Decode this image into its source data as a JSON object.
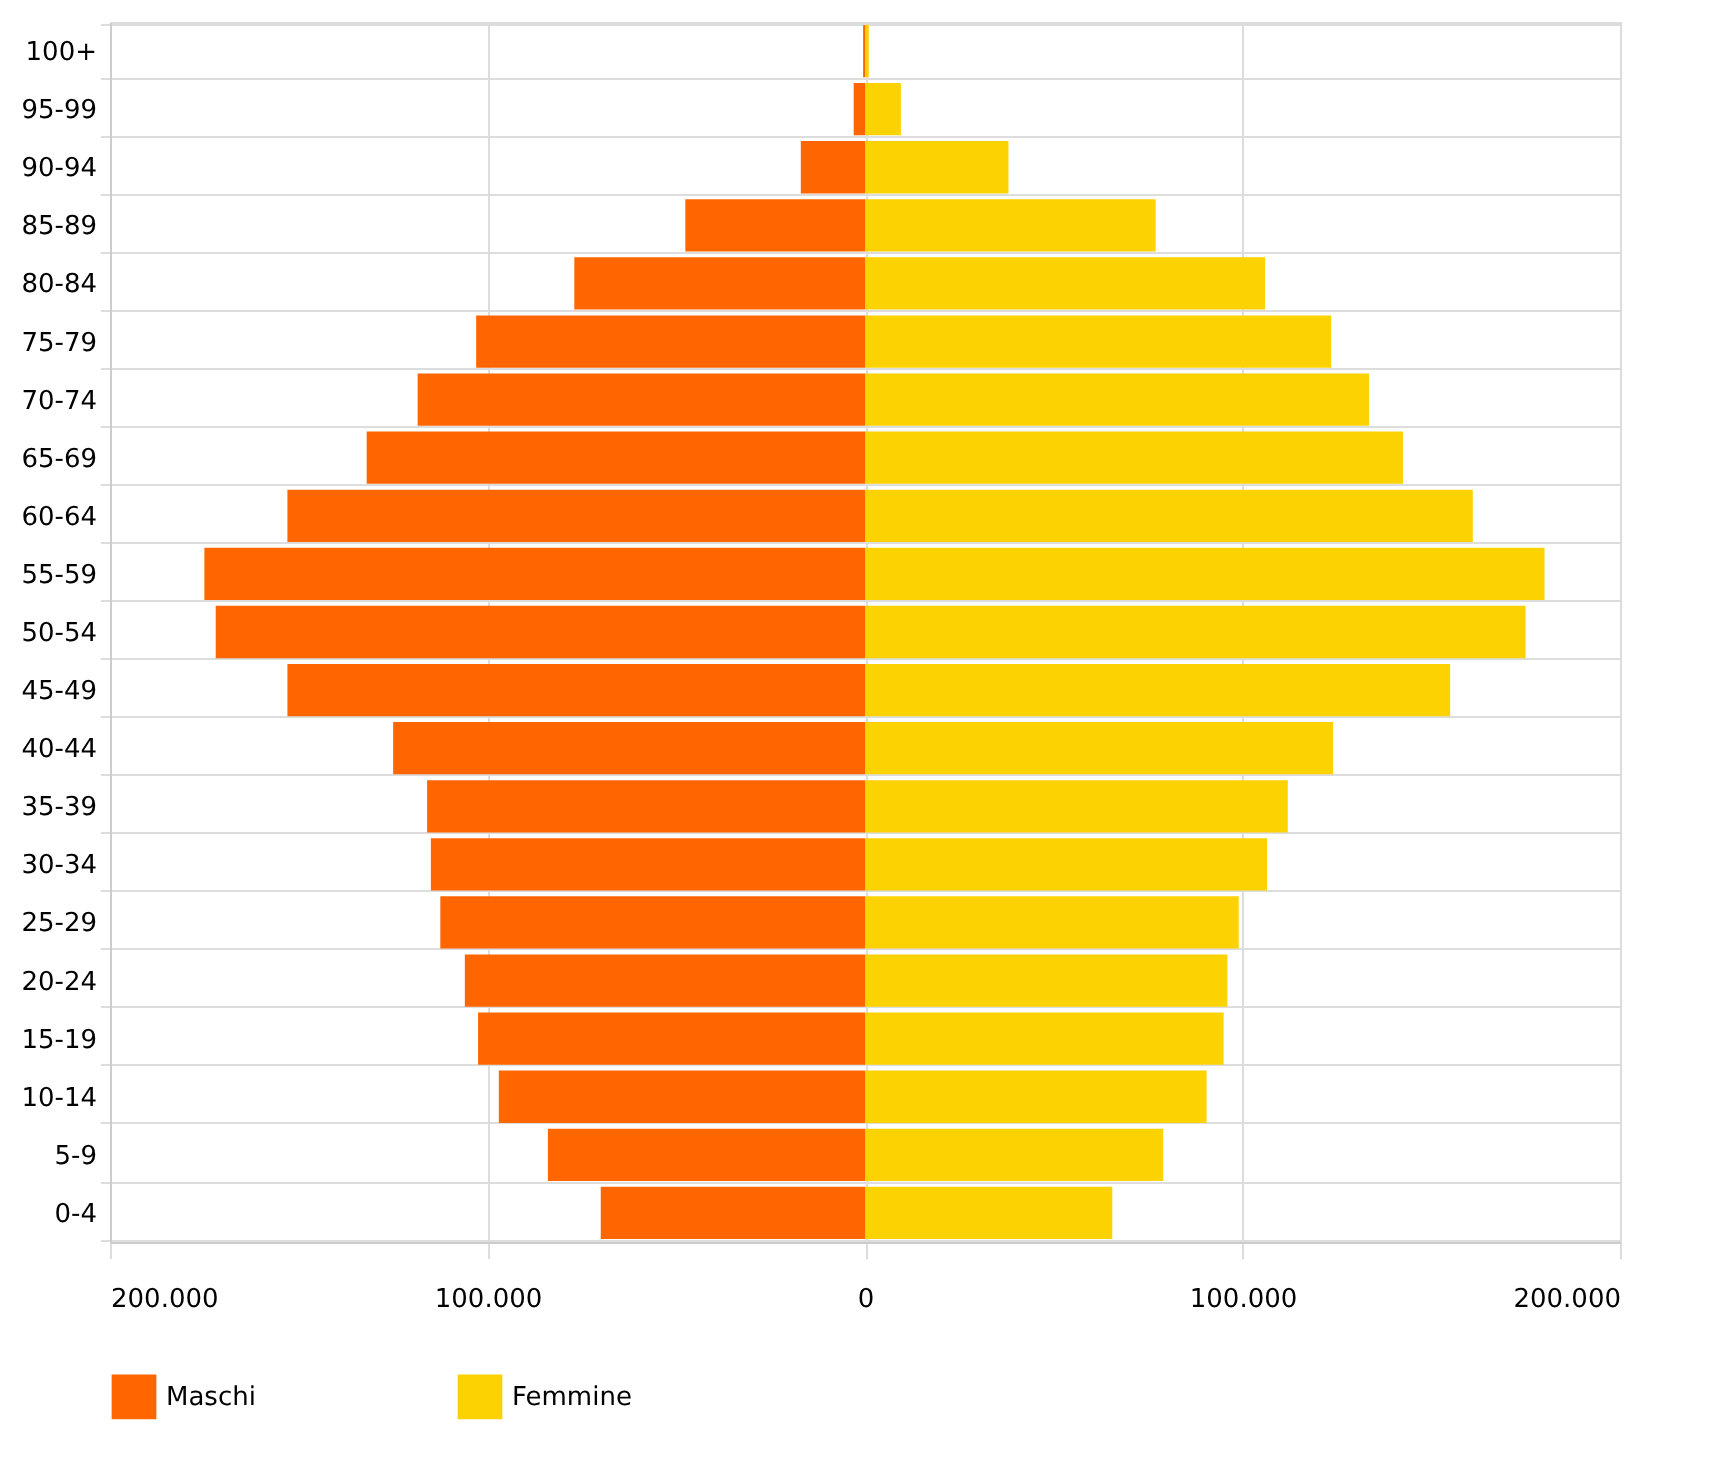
{
  "chart_data": {
    "type": "bar",
    "orientation": "horizontal",
    "stacked": true,
    "categories": [
      "100+",
      "95-99",
      "90-94",
      "85-89",
      "80-84",
      "75-79",
      "70-74",
      "65-69",
      "60-64",
      "55-59",
      "50-54",
      "45-49",
      "40-44",
      "35-39",
      "30-34",
      "25-29",
      "20-24",
      "15-19",
      "10-14",
      "5-9",
      "0-4"
    ],
    "series": [
      {
        "name": "Maschi",
        "color": "#ff6600",
        "values": [
          -500,
          -3000,
          -17000,
          -47600,
          -77000,
          -103000,
          -118500,
          -132000,
          -153000,
          -175000,
          -172000,
          -153000,
          -125000,
          -116000,
          -115000,
          -112500,
          -106000,
          -102500,
          -97000,
          -84000,
          -70000
        ]
      },
      {
        "name": "Femmine",
        "color": "#fcd202",
        "values": [
          1000,
          9500,
          38000,
          77000,
          106000,
          123500,
          133500,
          142500,
          161000,
          180000,
          175000,
          155000,
          124000,
          112000,
          106500,
          99000,
          96000,
          95000,
          90500,
          79000,
          65500
        ]
      }
    ],
    "xlim": [
      -200000,
      200000
    ],
    "xticks": [
      {
        "value": -200000,
        "label": "200.000"
      },
      {
        "value": -100000,
        "label": "100.000"
      },
      0,
      {
        "value": 100000,
        "label": "100.000"
      },
      {
        "value": 200000,
        "label": "200.000"
      }
    ],
    "grid": true,
    "legend": "bottom"
  }
}
